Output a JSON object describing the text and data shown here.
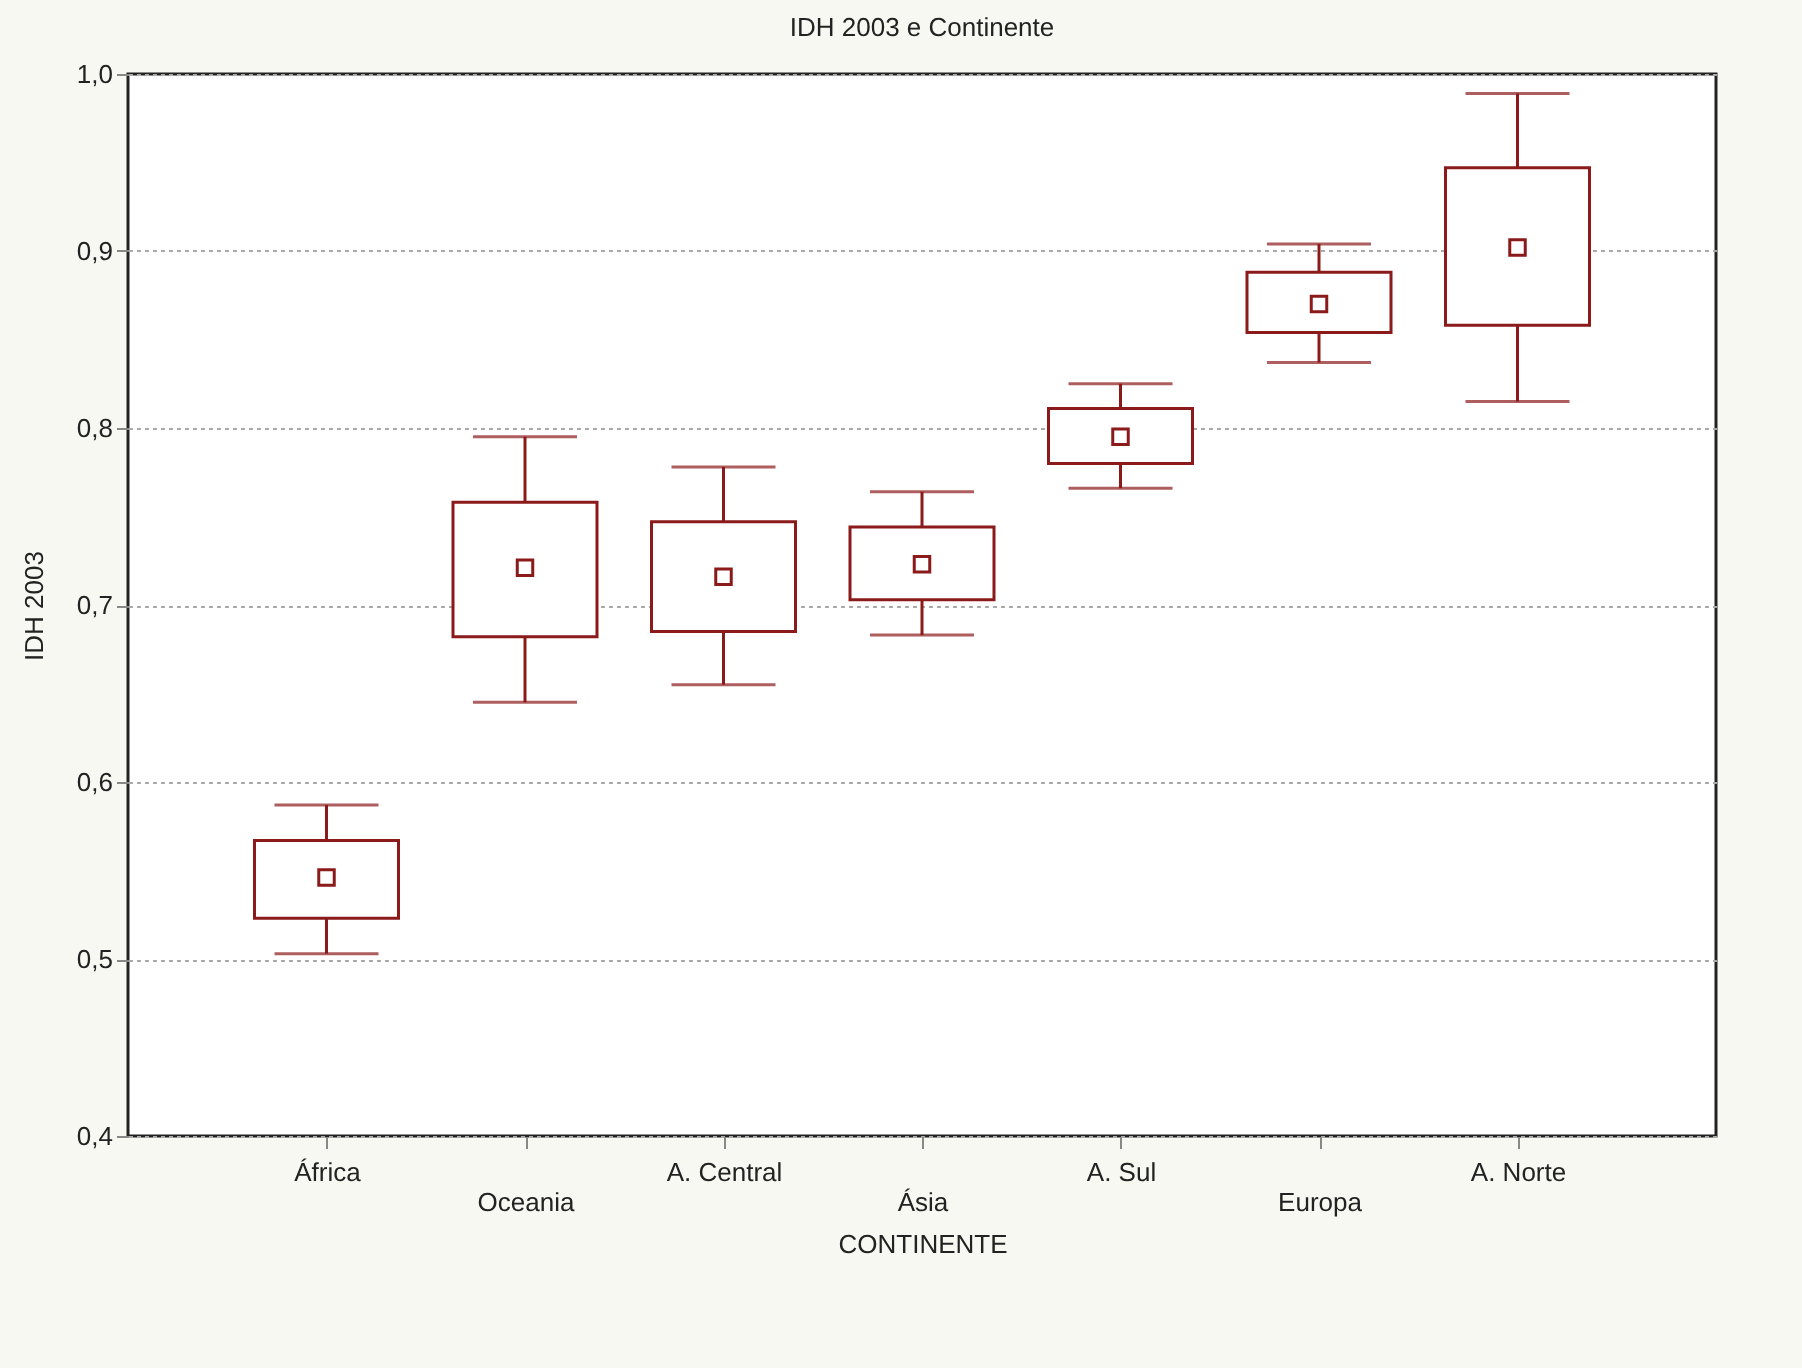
{
  "chart_data": {
    "type": "box",
    "title": "IDH  2003 e Continente",
    "xlabel": "CONTINENTE",
    "ylabel": "IDH 2003",
    "categories": [
      "África",
      "Oceania",
      "A. Central",
      "Ásia",
      "A. Sul",
      "Europa",
      "A. Norte"
    ],
    "ylim": [
      0.4,
      1.0
    ],
    "yticks": [
      {
        "value": 0.4,
        "label": "0,4"
      },
      {
        "value": 0.5,
        "label": "0,5"
      },
      {
        "value": 0.6,
        "label": "0,6"
      },
      {
        "value": 0.7,
        "label": "0,7"
      },
      {
        "value": 0.8,
        "label": "0,8"
      },
      {
        "value": 0.9,
        "label": "0,9"
      },
      {
        "value": 1.0,
        "label": "1,0"
      }
    ],
    "grid": "y",
    "marker": "square",
    "series": [
      {
        "color": "#8b1a1a",
        "boxes": [
          {
            "low": 0.503,
            "q1": 0.523,
            "median": 0.546,
            "q3": 0.567,
            "high": 0.587
          },
          {
            "low": 0.645,
            "q1": 0.682,
            "median": 0.721,
            "q3": 0.758,
            "high": 0.795
          },
          {
            "low": 0.655,
            "q1": 0.685,
            "median": 0.716,
            "q3": 0.747,
            "high": 0.778
          },
          {
            "low": 0.683,
            "q1": 0.703,
            "median": 0.723,
            "q3": 0.744,
            "high": 0.764
          },
          {
            "low": 0.766,
            "q1": 0.78,
            "median": 0.795,
            "q3": 0.811,
            "high": 0.825
          },
          {
            "low": 0.837,
            "q1": 0.854,
            "median": 0.87,
            "q3": 0.888,
            "high": 0.904
          },
          {
            "low": 0.815,
            "q1": 0.858,
            "median": 0.902,
            "q3": 0.947,
            "high": 0.989
          }
        ]
      }
    ]
  }
}
